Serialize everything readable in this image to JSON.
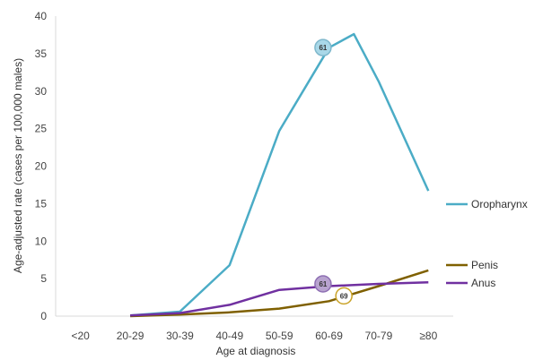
{
  "chart_data": {
    "type": "line",
    "title": "",
    "xlabel": "Age at diagnosis",
    "ylabel": "Age-adjusted rate (cases per 100,000 males)",
    "categories": [
      "<20",
      "20-29",
      "30-39",
      "40-49",
      "50-59",
      "60-69",
      "70-79",
      "≥80"
    ],
    "ylim": [
      0,
      40
    ],
    "yticks": [
      0,
      5,
      10,
      15,
      20,
      25,
      30,
      35,
      40
    ],
    "grid": false,
    "legend": "right",
    "series": [
      {
        "name": "Oropharynx",
        "color": "#4BACC6",
        "x": [
          1,
          2,
          3,
          4,
          5,
          5.5,
          6,
          7
        ],
        "values": [
          0.1,
          0.6,
          6.8,
          24.7,
          35.8,
          37.6,
          31.3,
          16.7
        ]
      },
      {
        "name": "Penis",
        "color": "#7F6000",
        "x": [
          1,
          2,
          3,
          4,
          5,
          6,
          7
        ],
        "values": [
          0.0,
          0.2,
          0.5,
          1.0,
          2.0,
          4.0,
          6.1
        ]
      },
      {
        "name": "Anus",
        "color": "#7030A0",
        "x": [
          1,
          2,
          3,
          4,
          5,
          6,
          7
        ],
        "values": [
          0.1,
          0.4,
          1.5,
          3.5,
          4.0,
          4.3,
          4.5
        ]
      }
    ],
    "annotations": [
      {
        "series": "Oropharynx",
        "x": 4.88,
        "y": 35.8,
        "label": "61",
        "fill": "#A9D8E8",
        "stroke": "#7FB8CC"
      },
      {
        "series": "Anus",
        "x": 4.88,
        "y": 4.3,
        "label": "61",
        "fill": "#B8A3CF",
        "stroke": "#8E6FB3"
      },
      {
        "series": "Penis",
        "x": 5.3,
        "y": 2.7,
        "label": "69",
        "fill": "#FFFFFF",
        "stroke": "#C9A227"
      }
    ]
  }
}
